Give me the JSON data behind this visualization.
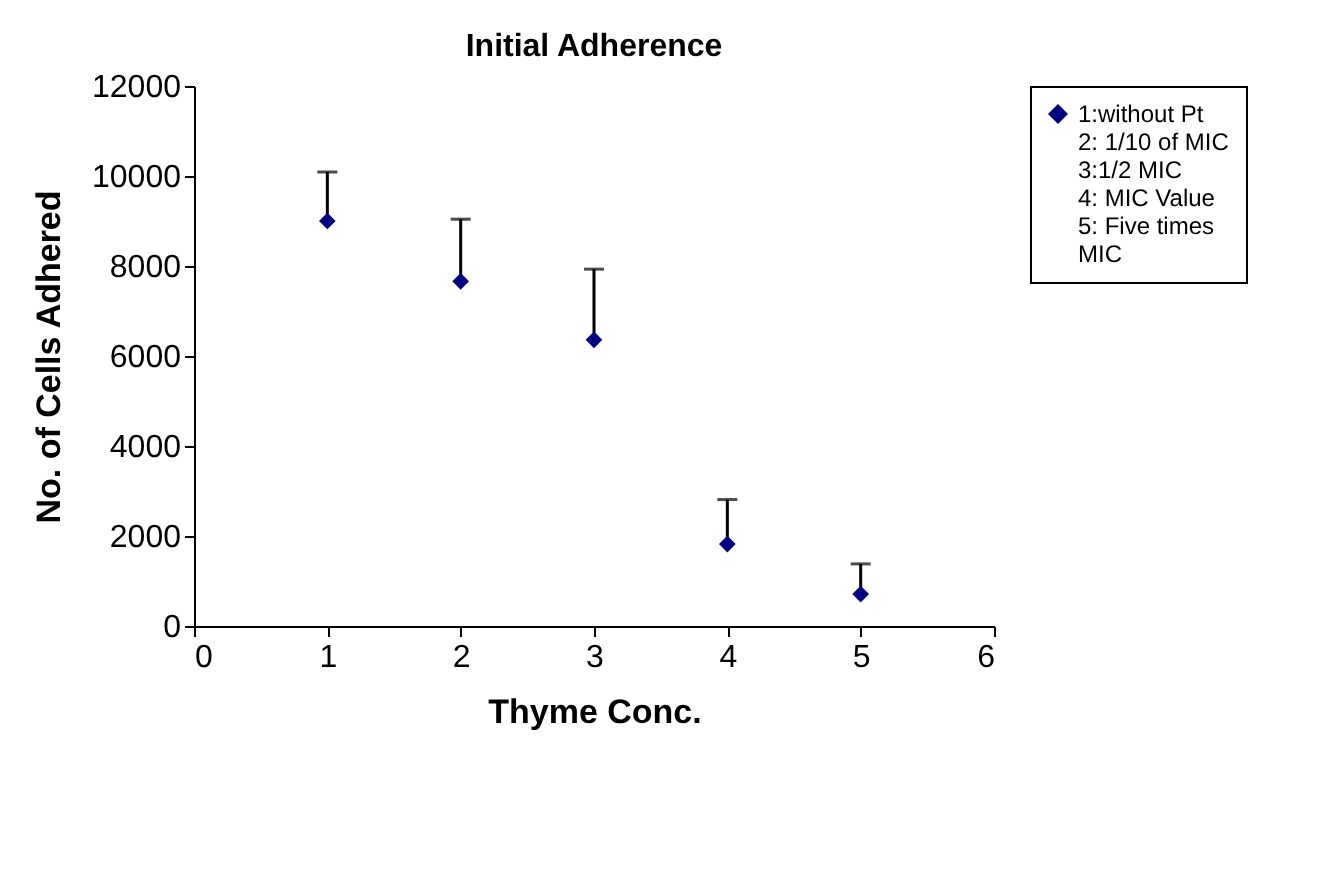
{
  "chart_data": {
    "type": "scatter",
    "title": "Initial Adherence",
    "xlabel": "Thyme Conc.",
    "ylabel": "No. of Cells Adhered",
    "x": [
      1,
      2,
      3,
      4,
      5
    ],
    "series": [
      {
        "name": "1:without Pt\n2: 1/10 of MIC\n3:1/2 MIC\n4: MIC Value\n5: Five times\nMIC",
        "color": "#000080",
        "values": [
          9000,
          7660,
          6360,
          1820,
          710
        ],
        "errors": [
          [
            9000,
            10090
          ],
          [
            7660,
            9040
          ],
          [
            6360,
            7930
          ],
          [
            1820,
            2810
          ],
          [
            710,
            1380
          ]
        ]
      }
    ],
    "xlim": [
      0,
      6
    ],
    "xticks": [
      0,
      1,
      2,
      3,
      4,
      5,
      6
    ],
    "ylim": [
      0,
      12000
    ],
    "yticks": [
      0,
      2000,
      4000,
      6000,
      8000,
      10000,
      12000
    ],
    "marker": "diamond",
    "grid": false,
    "legend": "right"
  }
}
